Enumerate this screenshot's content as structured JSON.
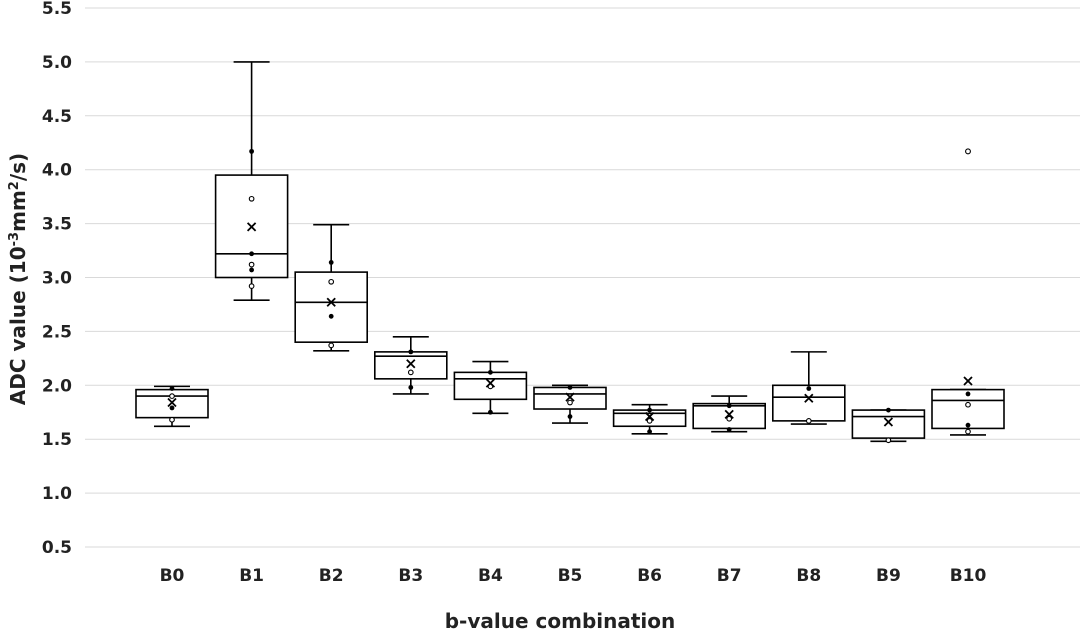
{
  "chart_data": {
    "type": "box",
    "title": "",
    "xlabel": "b-value combination",
    "ylabel_main": "ADC value (10",
    "ylabel_exp1": "-3",
    "ylabel_mid": "mm",
    "ylabel_exp2": "2",
    "ylabel_end": "/s)",
    "ylim": [
      0.5,
      5.5
    ],
    "yticks": [
      "0.5",
      "1.0",
      "1.5",
      "2.0",
      "2.5",
      "3.0",
      "3.5",
      "4.0",
      "4.5",
      "5.0",
      "5.5"
    ],
    "grid": true,
    "categories": [
      "B0",
      "B1",
      "B2",
      "B3",
      "B4",
      "B5",
      "B6",
      "B7",
      "B8",
      "B9",
      "B10"
    ],
    "boxes": [
      {
        "min": 1.62,
        "q1": 1.7,
        "median": 1.9,
        "q3": 1.96,
        "max": 1.99,
        "mean": 1.84,
        "points": [
          1.97,
          1.9,
          1.79,
          1.68
        ]
      },
      {
        "min": 2.79,
        "q1": 3.0,
        "median": 3.22,
        "q3": 3.95,
        "max": 5.0,
        "mean": 3.47,
        "points": [
          4.17,
          3.73,
          3.22,
          3.12,
          3.07,
          2.92
        ]
      },
      {
        "min": 2.32,
        "q1": 2.4,
        "median": 2.77,
        "q3": 3.05,
        "max": 3.49,
        "mean": 2.77,
        "points": [
          3.14,
          2.96,
          2.64,
          2.37
        ]
      },
      {
        "min": 1.92,
        "q1": 2.06,
        "median": 2.27,
        "q3": 2.31,
        "max": 2.45,
        "mean": 2.2,
        "points": [
          2.31,
          2.12,
          1.98
        ]
      },
      {
        "min": 1.74,
        "q1": 1.87,
        "median": 2.06,
        "q3": 2.12,
        "max": 2.22,
        "mean": 2.02,
        "points": [
          2.12,
          1.99,
          1.75
        ]
      },
      {
        "min": 1.65,
        "q1": 1.78,
        "median": 1.92,
        "q3": 1.98,
        "max": 2.0,
        "mean": 1.89,
        "points": [
          1.98,
          1.84,
          1.71
        ]
      },
      {
        "min": 1.55,
        "q1": 1.62,
        "median": 1.74,
        "q3": 1.77,
        "max": 1.82,
        "mean": 1.71,
        "points": [
          1.77,
          1.67,
          1.57
        ]
      },
      {
        "min": 1.57,
        "q1": 1.6,
        "median": 1.81,
        "q3": 1.83,
        "max": 1.9,
        "mean": 1.73,
        "points": [
          1.81,
          1.69,
          1.59
        ]
      },
      {
        "min": 1.64,
        "q1": 1.67,
        "median": 1.89,
        "q3": 2.0,
        "max": 2.31,
        "mean": 1.88,
        "points": [
          1.97,
          1.67
        ]
      },
      {
        "min": 1.48,
        "q1": 1.51,
        "median": 1.71,
        "q3": 1.77,
        "max": 1.77,
        "mean": 1.66,
        "points": [
          1.77,
          1.49
        ]
      },
      {
        "min": 1.54,
        "q1": 1.6,
        "median": 1.86,
        "q3": 1.96,
        "max": 1.96,
        "mean": 2.04,
        "points": [
          1.92,
          1.82,
          1.63,
          1.57
        ],
        "outliers": [
          4.17
        ]
      }
    ]
  }
}
